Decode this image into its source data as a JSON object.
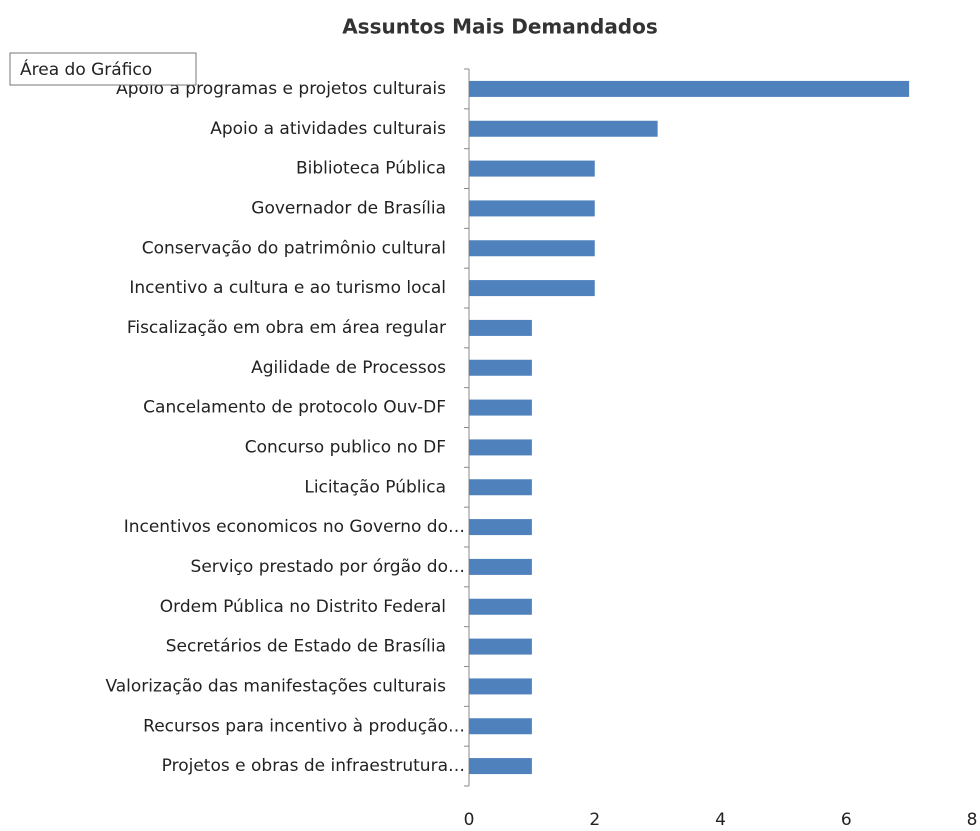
{
  "chart_data": {
    "type": "bar",
    "orientation": "horizontal",
    "title": "Assuntos Mais Demandados",
    "annotation": "Área do Gráfico",
    "categories": [
      "Apoio a programas e projetos culturais",
      "Apoio a atividades culturais",
      "Biblioteca Pública",
      "Governador de Brasília",
      "Conservação do patrimônio cultural",
      "Incentivo a cultura e ao turismo local",
      "Fiscalização em obra em área regular",
      "Agilidade de Processos",
      "Cancelamento de protocolo Ouv-DF",
      "Concurso publico no DF",
      "Licitação Pública",
      "Incentivos economicos no Governo do…",
      "Serviço prestado por órgão do…",
      "Ordem Pública no Distrito Federal",
      "Secretários de Estado de Brasília",
      "Valorização das manifestações culturais",
      "Recursos para incentivo à produção…",
      "Projetos e obras de infraestrutura…"
    ],
    "values": [
      7,
      3,
      2,
      2,
      2,
      2,
      1,
      1,
      1,
      1,
      1,
      1,
      1,
      1,
      1,
      1,
      1,
      1
    ],
    "color": "#4f81bd",
    "xlim": [
      0,
      8
    ],
    "xticks": [
      0,
      2,
      4,
      6,
      8
    ]
  }
}
